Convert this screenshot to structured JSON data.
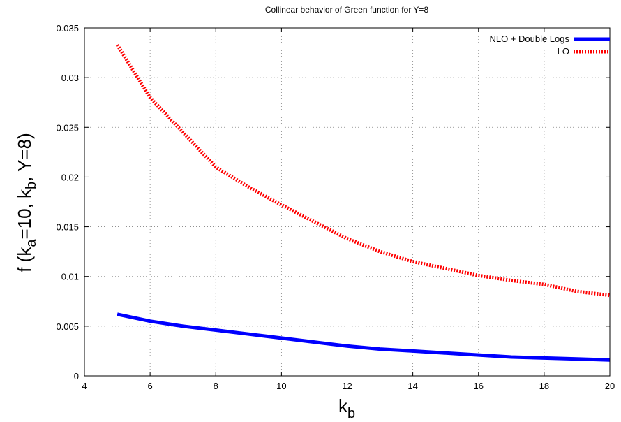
{
  "chart_data": {
    "type": "line",
    "title": "Collinear behavior of Green function for Y=8",
    "xlabel": {
      "main": "k",
      "sub": "b"
    },
    "ylabel": {
      "parts": [
        "f (k",
        "a",
        "=10, k",
        "b",
        ", Y=8)"
      ]
    },
    "xlim": [
      4,
      20
    ],
    "ylim": [
      0,
      0.035
    ],
    "xticks": [
      4,
      6,
      8,
      10,
      12,
      14,
      16,
      18,
      20
    ],
    "yticks": [
      0,
      0.005,
      0.01,
      0.015,
      0.02,
      0.025,
      0.03,
      0.035
    ],
    "xtick_labels": [
      "4",
      "6",
      "8",
      "10",
      "12",
      "14",
      "16",
      "18",
      "20"
    ],
    "ytick_labels": [
      "0",
      "0.005",
      "0.01",
      "0.015",
      "0.02",
      "0.025",
      "0.03",
      "0.035"
    ],
    "grid": true,
    "legend_position": "top-right",
    "series": [
      {
        "name": "NLO + Double Logs",
        "color": "#0000ff",
        "style": "solid",
        "x": [
          5,
          6,
          7,
          8,
          9,
          10,
          11,
          12,
          13,
          14,
          15,
          16,
          17,
          18,
          19,
          20
        ],
        "y": [
          0.0062,
          0.0055,
          0.005,
          0.0046,
          0.0042,
          0.0038,
          0.0034,
          0.003,
          0.0027,
          0.0025,
          0.0023,
          0.0021,
          0.0019,
          0.0018,
          0.0017,
          0.0016
        ]
      },
      {
        "name": "LO",
        "color": "#ff0000",
        "style": "dotted",
        "x": [
          5,
          6,
          7,
          8,
          9,
          10,
          11,
          12,
          13,
          14,
          15,
          16,
          17,
          18,
          19,
          20
        ],
        "y": [
          0.0333,
          0.028,
          0.0245,
          0.021,
          0.019,
          0.0172,
          0.0155,
          0.0138,
          0.0125,
          0.0115,
          0.0108,
          0.0101,
          0.0096,
          0.0092,
          0.0085,
          0.0081
        ]
      }
    ]
  }
}
